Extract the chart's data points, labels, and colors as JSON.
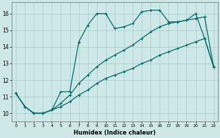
{
  "xlabel": "Humidex (Indice chaleur)",
  "xlim": [
    -0.5,
    22.5
  ],
  "ylim": [
    9.5,
    16.7
  ],
  "yticks": [
    10,
    11,
    12,
    13,
    14,
    15,
    16
  ],
  "xticks": [
    0,
    1,
    2,
    3,
    4,
    5,
    6,
    7,
    8,
    9,
    10,
    11,
    12,
    13,
    14,
    15,
    16,
    17,
    18,
    19,
    20,
    21,
    22
  ],
  "bg_color": "#cee8e8",
  "grid_color": "#add0d0",
  "line_color": "#006868",
  "line1_x": [
    0,
    1,
    2,
    3,
    4,
    5,
    6,
    7,
    8,
    9,
    10,
    11,
    12,
    13,
    14,
    15,
    16,
    17,
    18,
    19,
    20,
    21,
    22
  ],
  "line1_y": [
    11.2,
    10.4,
    10.0,
    10.0,
    10.2,
    11.3,
    11.3,
    14.3,
    15.3,
    16.0,
    16.0,
    15.1,
    15.2,
    15.4,
    16.1,
    16.2,
    16.2,
    15.5,
    15.5,
    15.6,
    16.0,
    14.5,
    12.8
  ],
  "line2_x": [
    0,
    1,
    2,
    3,
    4,
    5,
    6,
    7,
    8,
    9,
    10,
    11,
    12,
    13,
    14,
    15,
    16,
    17,
    18,
    19,
    20,
    21,
    22
  ],
  "line2_y": [
    11.2,
    10.4,
    10.0,
    10.0,
    10.2,
    10.6,
    11.1,
    11.8,
    12.3,
    12.8,
    13.2,
    13.5,
    13.8,
    14.1,
    14.5,
    14.9,
    15.2,
    15.4,
    15.5,
    15.6,
    15.7,
    15.8,
    12.8
  ],
  "line3_x": [
    0,
    1,
    2,
    3,
    4,
    5,
    6,
    7,
    8,
    9,
    10,
    11,
    12,
    13,
    14,
    15,
    16,
    17,
    18,
    19,
    20,
    21,
    22
  ],
  "line3_y": [
    11.2,
    10.4,
    10.0,
    10.0,
    10.2,
    10.4,
    10.7,
    11.1,
    11.4,
    11.8,
    12.1,
    12.3,
    12.5,
    12.7,
    13.0,
    13.2,
    13.5,
    13.7,
    13.9,
    14.1,
    14.3,
    14.5,
    12.8
  ]
}
